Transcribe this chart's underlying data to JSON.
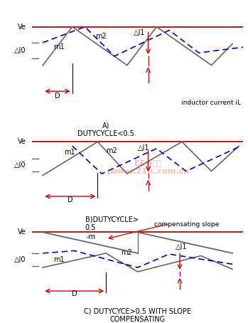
{
  "fig_width": 3.49,
  "fig_height": 4.54,
  "dpi": 100,
  "bg_color": "#ffffff",
  "rc": "#cc0000",
  "bc": "#0000cc",
  "gc": "#666666",
  "Ve_label": "Ve",
  "dI0_label": "△I0",
  "dI1_label": "△I1",
  "m1_label": "m1",
  "m2_label": "m2",
  "D_label": "D",
  "neg_m_label": "-m",
  "comp_slope_label": "compensating slope",
  "iL_label": "inductor current iL",
  "capA": "A)\nDUTYCYCLE<0.5",
  "capB": "B)DUTYCYCLE>\n0.5",
  "capC": "C) DUTYCYCE>0.5 WITH SLOPE\nCOMPENSATING"
}
